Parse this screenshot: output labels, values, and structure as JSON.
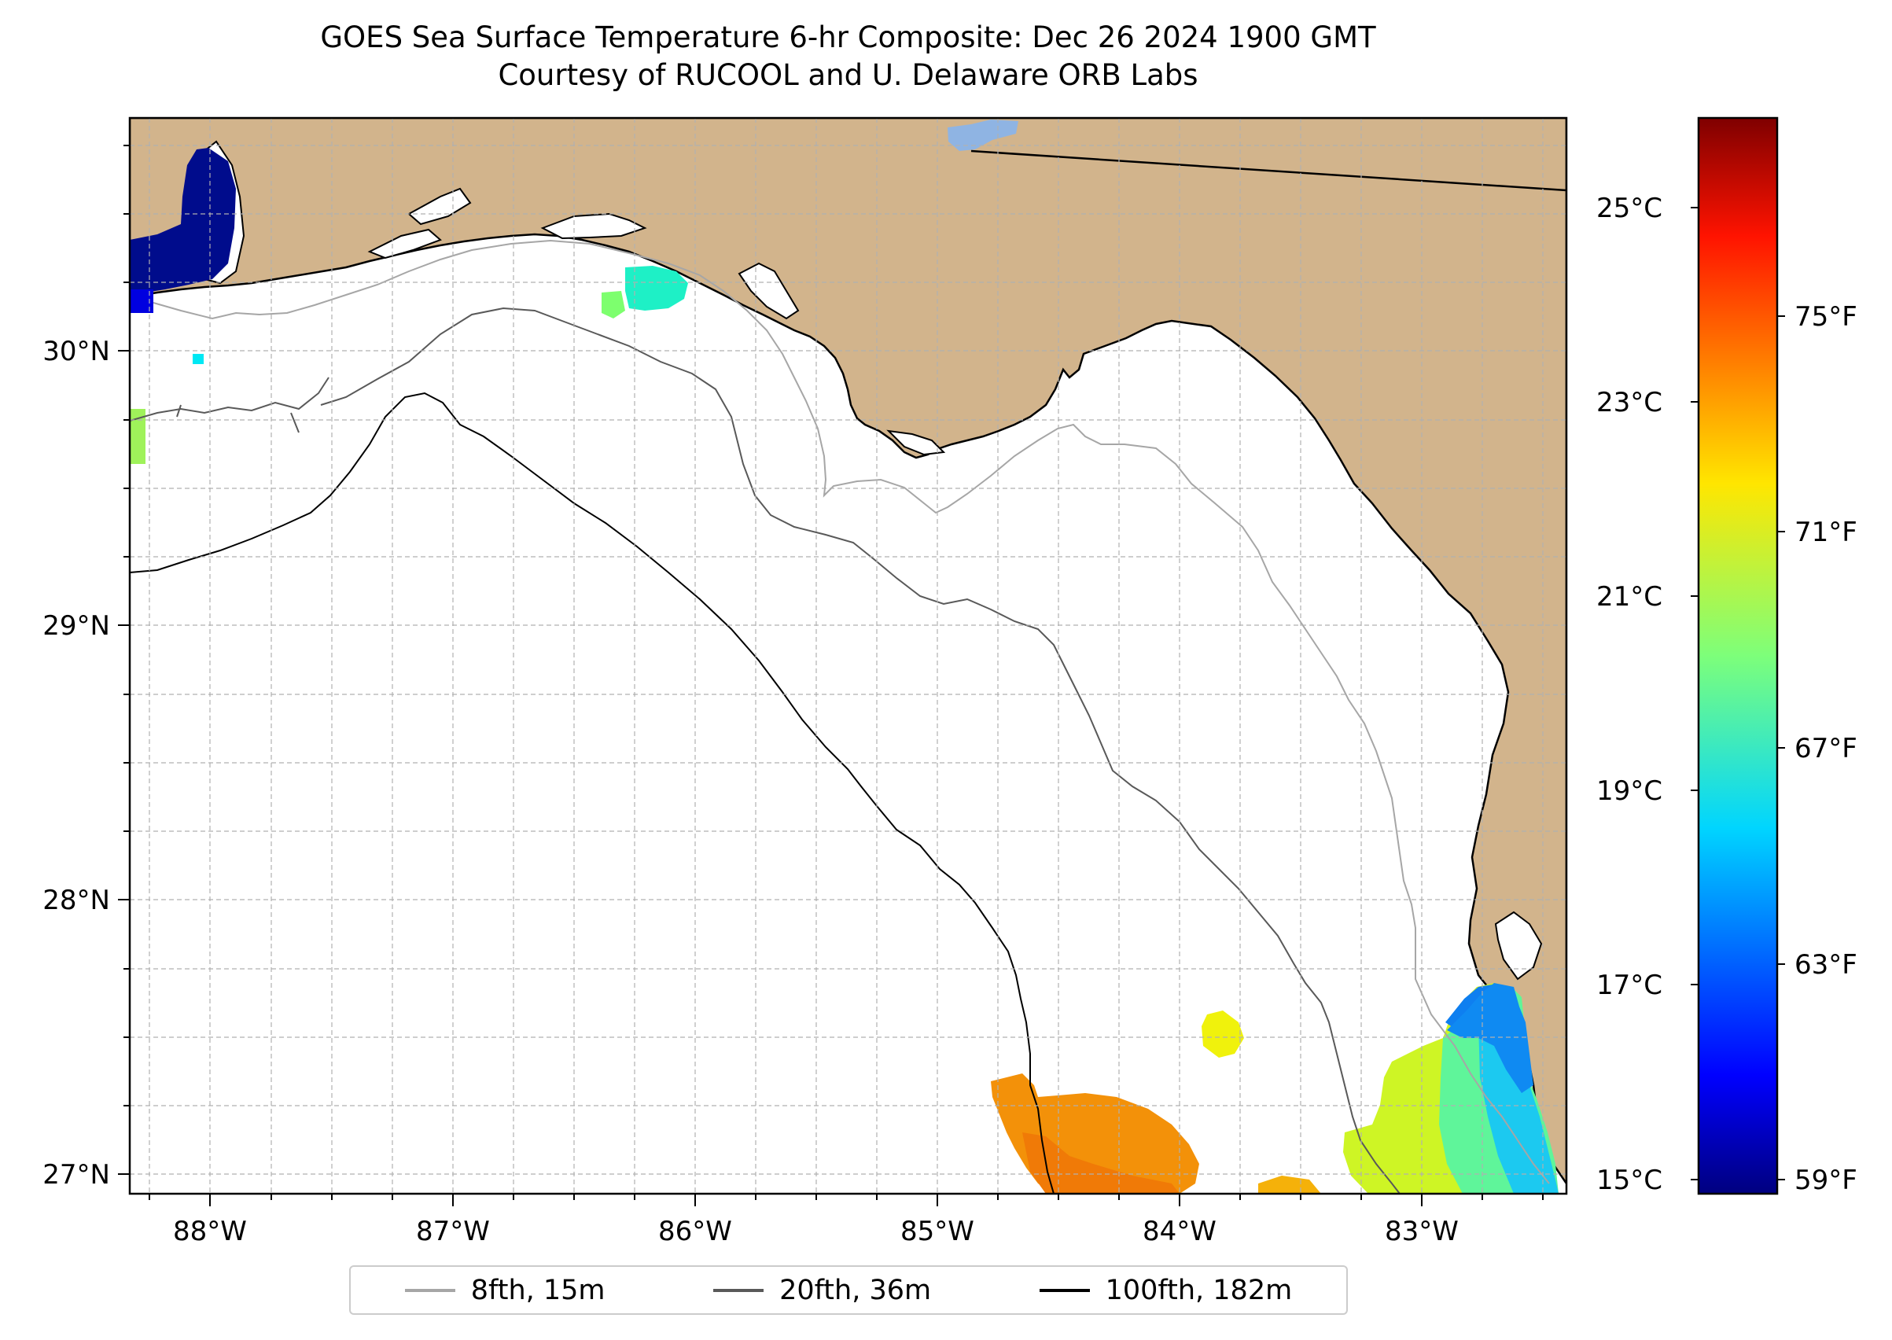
{
  "title_line1": "GOES Sea Surface Temperature 6-hr Composite: Dec 26 2024 1900 GMT",
  "title_line2": "Courtesy of RUCOOL and U. Delaware ORB Labs",
  "map": {
    "lon_range": [
      -88.33,
      -82.4
    ],
    "lat_range": [
      26.93,
      30.85
    ],
    "lon_ticks": [
      "88°W",
      "87°W",
      "86°W",
      "85°W",
      "84°W",
      "83°W"
    ],
    "lat_ticks": [
      "27°N",
      "28°N",
      "29°N",
      "30°N"
    ],
    "land_color": "#d2b48c",
    "grid": true
  },
  "colorbar": {
    "celsius_ticks": [
      "15°C",
      "17°C",
      "19°C",
      "21°C",
      "23°C",
      "25°C"
    ],
    "fahrenheit_ticks": [
      "59°F",
      "63°F",
      "67°F",
      "71°F",
      "75°F"
    ],
    "min_f": 58.8,
    "max_f": 79.5,
    "colormap": "jet"
  },
  "legend": [
    {
      "label": "8fth, 15m",
      "color": "#a6a6a6"
    },
    {
      "label": "20fth, 36m",
      "color": "#595959"
    },
    {
      "label": "100fth, 182m",
      "color": "#000000"
    }
  ]
}
